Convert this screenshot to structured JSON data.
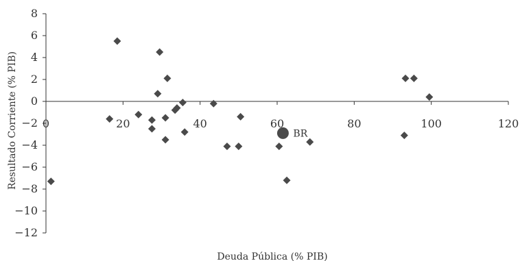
{
  "chart_data": {
    "type": "scatter",
    "title": "",
    "xlabel": "Deuda Pública (% PIB)",
    "ylabel": "Resultado Corriente (% PIB)",
    "xlim": [
      0,
      120
    ],
    "ylim": [
      -12,
      8
    ],
    "x_ticks": [
      0,
      20,
      40,
      60,
      80,
      100,
      120
    ],
    "y_ticks": [
      8,
      6,
      4,
      2,
      0,
      -2,
      -4,
      -6,
      -8,
      -10,
      -12
    ],
    "x_tick_labels": [
      "0",
      "20",
      "40",
      "60",
      "80",
      "100",
      "120"
    ],
    "y_tick_labels": [
      "8",
      "6",
      "4",
      "2",
      "0",
      "−2",
      "−4",
      "−6",
      "−8",
      "−10",
      "−12"
    ],
    "grid": false,
    "legend": "none",
    "marker_color": "#4a4a4a",
    "series": [
      {
        "marker": "diamond",
        "points": [
          {
            "x": 1.3,
            "y": -7.3
          },
          {
            "x": 16.5,
            "y": -1.6
          },
          {
            "x": 18.5,
            "y": 5.5
          },
          {
            "x": 24,
            "y": -1.2
          },
          {
            "x": 27.5,
            "y": -1.7
          },
          {
            "x": 27.5,
            "y": -2.5
          },
          {
            "x": 29,
            "y": 0.7
          },
          {
            "x": 29.5,
            "y": 4.5
          },
          {
            "x": 31,
            "y": -1.5
          },
          {
            "x": 31,
            "y": -3.5
          },
          {
            "x": 31.5,
            "y": 2.1
          },
          {
            "x": 33.5,
            "y": -0.8
          },
          {
            "x": 34,
            "y": -0.6
          },
          {
            "x": 35.5,
            "y": -0.1
          },
          {
            "x": 36,
            "y": -2.8
          },
          {
            "x": 43.5,
            "y": -0.2
          },
          {
            "x": 47,
            "y": -4.1
          },
          {
            "x": 50,
            "y": -4.1
          },
          {
            "x": 50.5,
            "y": -1.4
          },
          {
            "x": 60.5,
            "y": -4.1
          },
          {
            "x": 62.5,
            "y": -7.2
          },
          {
            "x": 68.5,
            "y": -3.7
          },
          {
            "x": 93,
            "y": -3.1
          },
          {
            "x": 93.3,
            "y": 2.1
          },
          {
            "x": 95.5,
            "y": 2.1
          },
          {
            "x": 99.5,
            "y": 0.4
          }
        ]
      },
      {
        "marker": "circle",
        "points": [
          {
            "x": 61.5,
            "y": -2.9,
            "label": "BR"
          }
        ]
      }
    ]
  }
}
